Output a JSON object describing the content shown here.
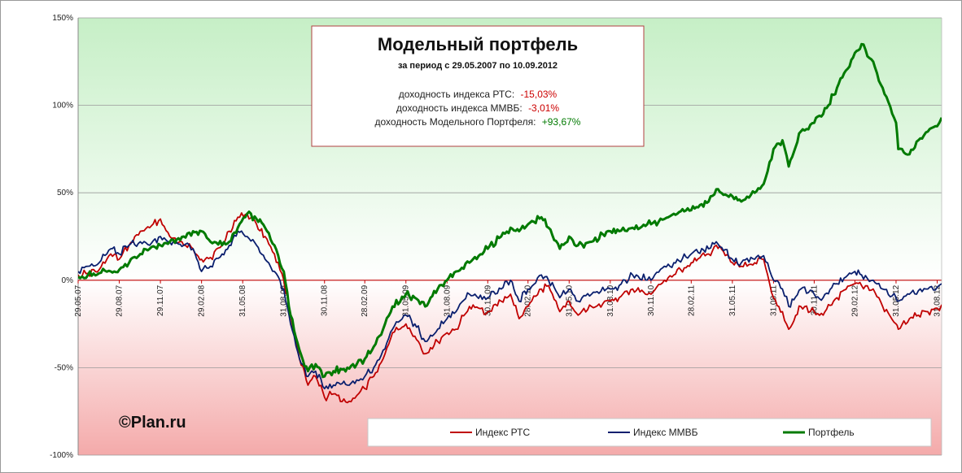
{
  "chart_data": {
    "type": "line",
    "title": "Модельный портфель",
    "subtitle": "за период с 29.05.2007 по 10.09.2012",
    "stats": [
      {
        "label": "доходность  индекса РТС:",
        "value": "-15,03%",
        "color": "#cc0000"
      },
      {
        "label": "доходность индекса ММВБ:",
        "value": "-3,01%",
        "color": "#cc0000"
      },
      {
        "label": "доходность Модельного Портфеля:",
        "value": "+93,67%",
        "color": "#007a00"
      }
    ],
    "watermark": "©Plan.ru",
    "ylim": [
      -100,
      150
    ],
    "yticks": [
      150,
      100,
      50,
      0,
      -50,
      -100
    ],
    "ytick_labels": [
      "150%",
      "100%",
      "50%",
      "0%",
      "-50%",
      "-100%"
    ],
    "xlim": [
      "2007-05-29",
      "2012-09-10"
    ],
    "xticks": [
      {
        "date": "2007-05-29",
        "label": "29.05.07"
      },
      {
        "date": "2007-08-29",
        "label": "29.08.07"
      },
      {
        "date": "2007-11-29",
        "label": "29.11.07"
      },
      {
        "date": "2008-02-29",
        "label": "29.02.08"
      },
      {
        "date": "2008-05-31",
        "label": "31.05.08"
      },
      {
        "date": "2008-08-31",
        "label": "31.08.08"
      },
      {
        "date": "2008-11-30",
        "label": "30.11.08"
      },
      {
        "date": "2009-02-28",
        "label": "28.02.09"
      },
      {
        "date": "2009-05-31",
        "label": "31.05.09"
      },
      {
        "date": "2009-08-31",
        "label": "31.08.09"
      },
      {
        "date": "2009-11-30",
        "label": "30.11.09"
      },
      {
        "date": "2010-02-28",
        "label": "28.02.10"
      },
      {
        "date": "2010-05-31",
        "label": "31.05.10"
      },
      {
        "date": "2010-08-31",
        "label": "31.08.10"
      },
      {
        "date": "2010-11-30",
        "label": "30.11.10"
      },
      {
        "date": "2011-02-28",
        "label": "28.02.11"
      },
      {
        "date": "2011-05-31",
        "label": "31.05.11"
      },
      {
        "date": "2011-08-31",
        "label": "31.08.11"
      },
      {
        "date": "2011-11-30",
        "label": "30.11.11"
      },
      {
        "date": "2012-02-29",
        "label": "29.02.12"
      },
      {
        "date": "2012-05-31",
        "label": "31.05.12"
      },
      {
        "date": "2012-08-31",
        "label": "31.08.12"
      }
    ],
    "grid": true,
    "legend": "bottom-right",
    "series": [
      {
        "name": "Индекс РТС",
        "color": "#c00000",
        "dates": [
          "2007-05-29",
          "2007-06-20",
          "2007-07-15",
          "2007-08-10",
          "2007-08-29",
          "2007-09-20",
          "2007-10-15",
          "2007-11-05",
          "2007-11-29",
          "2007-12-20",
          "2008-01-20",
          "2008-02-10",
          "2008-02-29",
          "2008-03-20",
          "2008-04-15",
          "2008-05-01",
          "2008-05-20",
          "2008-06-10",
          "2008-07-01",
          "2008-07-20",
          "2008-08-10",
          "2008-08-31",
          "2008-09-15",
          "2008-10-05",
          "2008-10-24",
          "2008-11-10",
          "2008-11-30",
          "2008-12-20",
          "2009-01-20",
          "2009-02-10",
          "2009-02-28",
          "2009-03-20",
          "2009-04-10",
          "2009-05-01",
          "2009-05-31",
          "2009-06-20",
          "2009-07-13",
          "2009-08-10",
          "2009-08-31",
          "2009-09-20",
          "2009-10-20",
          "2009-11-30",
          "2009-12-30",
          "2010-01-20",
          "2010-02-08",
          "2010-02-28",
          "2010-03-30",
          "2010-04-15",
          "2010-05-10",
          "2010-05-31",
          "2010-06-20",
          "2010-07-20",
          "2010-08-31",
          "2010-09-20",
          "2010-10-20",
          "2010-11-30",
          "2010-12-30",
          "2011-01-20",
          "2011-02-28",
          "2011-04-08",
          "2011-04-25",
          "2011-05-31",
          "2011-06-20",
          "2011-07-20",
          "2011-08-09",
          "2011-08-31",
          "2011-09-20",
          "2011-10-04",
          "2011-10-31",
          "2011-11-30",
          "2011-12-20",
          "2012-01-20",
          "2012-02-29",
          "2012-03-15",
          "2012-04-10",
          "2012-05-01",
          "2012-05-31",
          "2012-06-05",
          "2012-06-30",
          "2012-07-20",
          "2012-08-10",
          "2012-08-31",
          "2012-09-10"
        ],
        "values": [
          3,
          4,
          6,
          15,
          12,
          20,
          28,
          30,
          35,
          25,
          20,
          18,
          12,
          13,
          20,
          28,
          36,
          38,
          32,
          25,
          15,
          0,
          -20,
          -45,
          -60,
          -55,
          -67,
          -65,
          -70,
          -66,
          -62,
          -55,
          -45,
          -30,
          -25,
          -32,
          -42,
          -35,
          -30,
          -28,
          -15,
          -18,
          -12,
          -8,
          -22,
          -15,
          -5,
          -3,
          -18,
          -12,
          -20,
          -15,
          -12,
          -10,
          -5,
          -8,
          0,
          3,
          10,
          15,
          20,
          10,
          8,
          10,
          12,
          -10,
          -18,
          -28,
          -15,
          -18,
          -20,
          -10,
          -2,
          -3,
          -5,
          -15,
          -25,
          -28,
          -22,
          -20,
          -18,
          -16,
          -14
        ]
      },
      {
        "name": "Индекс ММВБ",
        "color": "#0a1f6e",
        "dates": [
          "2007-05-29",
          "2007-06-20",
          "2007-07-15",
          "2007-08-10",
          "2007-08-29",
          "2007-09-20",
          "2007-10-15",
          "2007-11-05",
          "2007-11-29",
          "2007-12-20",
          "2008-01-20",
          "2008-02-10",
          "2008-02-29",
          "2008-03-20",
          "2008-04-15",
          "2008-05-01",
          "2008-05-20",
          "2008-06-10",
          "2008-07-01",
          "2008-07-20",
          "2008-08-10",
          "2008-08-31",
          "2008-09-15",
          "2008-10-05",
          "2008-10-24",
          "2008-11-10",
          "2008-11-30",
          "2008-12-20",
          "2009-01-20",
          "2009-02-10",
          "2009-02-28",
          "2009-03-20",
          "2009-04-10",
          "2009-05-01",
          "2009-05-31",
          "2009-06-20",
          "2009-07-13",
          "2009-08-10",
          "2009-08-31",
          "2009-09-20",
          "2009-10-20",
          "2009-11-30",
          "2009-12-30",
          "2010-01-20",
          "2010-02-08",
          "2010-02-28",
          "2010-03-30",
          "2010-04-15",
          "2010-05-10",
          "2010-05-31",
          "2010-06-20",
          "2010-07-20",
          "2010-08-31",
          "2010-09-20",
          "2010-10-20",
          "2010-11-30",
          "2010-12-30",
          "2011-01-20",
          "2011-02-28",
          "2011-04-08",
          "2011-04-25",
          "2011-05-31",
          "2011-06-20",
          "2011-07-20",
          "2011-08-09",
          "2011-08-31",
          "2011-09-20",
          "2011-10-04",
          "2011-10-31",
          "2011-11-30",
          "2011-12-20",
          "2012-01-20",
          "2012-02-29",
          "2012-03-15",
          "2012-04-10",
          "2012-05-01",
          "2012-05-31",
          "2012-06-05",
          "2012-06-30",
          "2012-07-20",
          "2012-08-10",
          "2012-08-31",
          "2012-09-10"
        ],
        "values": [
          5,
          8,
          10,
          18,
          15,
          20,
          22,
          20,
          25,
          22,
          20,
          18,
          5,
          8,
          15,
          20,
          28,
          25,
          20,
          12,
          5,
          -5,
          -25,
          -45,
          -55,
          -52,
          -62,
          -60,
          -60,
          -57,
          -55,
          -50,
          -40,
          -28,
          -20,
          -25,
          -35,
          -28,
          -22,
          -18,
          -8,
          -10,
          -5,
          0,
          -12,
          -5,
          3,
          0,
          -10,
          -5,
          -12,
          -8,
          -5,
          -3,
          3,
          0,
          8,
          10,
          15,
          18,
          22,
          12,
          10,
          12,
          14,
          0,
          -5,
          -15,
          -5,
          -8,
          -10,
          -2,
          5,
          3,
          0,
          -5,
          -10,
          -12,
          -8,
          -6,
          -5,
          -4,
          -2
        ]
      },
      {
        "name": "Портфель",
        "color": "#007a00",
        "dates": [
          "2007-05-29",
          "2007-06-20",
          "2007-07-15",
          "2007-08-10",
          "2007-08-29",
          "2007-09-20",
          "2007-10-15",
          "2007-11-05",
          "2007-11-29",
          "2007-12-20",
          "2008-01-20",
          "2008-02-10",
          "2008-02-29",
          "2008-03-20",
          "2008-04-15",
          "2008-05-01",
          "2008-05-20",
          "2008-06-10",
          "2008-07-01",
          "2008-07-20",
          "2008-08-10",
          "2008-08-31",
          "2008-09-15",
          "2008-10-05",
          "2008-10-24",
          "2008-11-10",
          "2008-11-30",
          "2008-12-20",
          "2009-01-20",
          "2009-02-10",
          "2009-02-28",
          "2009-03-20",
          "2009-04-10",
          "2009-05-01",
          "2009-05-31",
          "2009-06-20",
          "2009-07-13",
          "2009-08-10",
          "2009-08-31",
          "2009-09-20",
          "2009-10-20",
          "2009-11-30",
          "2009-12-30",
          "2010-01-20",
          "2010-02-08",
          "2010-02-28",
          "2010-03-30",
          "2010-04-15",
          "2010-05-10",
          "2010-05-31",
          "2010-06-20",
          "2010-07-20",
          "2010-08-31",
          "2010-09-20",
          "2010-10-20",
          "2010-11-30",
          "2010-12-30",
          "2011-01-20",
          "2011-02-28",
          "2011-04-08",
          "2011-04-25",
          "2011-05-31",
          "2011-06-20",
          "2011-07-20",
          "2011-08-09",
          "2011-08-31",
          "2011-09-20",
          "2011-10-04",
          "2011-10-31",
          "2011-11-30",
          "2011-12-20",
          "2012-01-20",
          "2012-02-29",
          "2012-03-15",
          "2012-04-10",
          "2012-05-01",
          "2012-05-31",
          "2012-06-05",
          "2012-06-30",
          "2012-07-20",
          "2012-08-10",
          "2012-08-31",
          "2012-09-10"
        ],
        "values": [
          2,
          3,
          4,
          5,
          6,
          10,
          15,
          18,
          20,
          22,
          25,
          28,
          28,
          22,
          20,
          22,
          30,
          38,
          35,
          30,
          20,
          5,
          -20,
          -40,
          -52,
          -48,
          -55,
          -52,
          -50,
          -48,
          -45,
          -38,
          -28,
          -15,
          -8,
          -10,
          -15,
          -5,
          0,
          5,
          10,
          18,
          25,
          30,
          28,
          32,
          36,
          30,
          18,
          25,
          20,
          22,
          28,
          28,
          30,
          32,
          35,
          38,
          40,
          45,
          52,
          48,
          45,
          50,
          55,
          75,
          80,
          65,
          85,
          90,
          95,
          110,
          130,
          135,
          125,
          110,
          90,
          75,
          72,
          80,
          85,
          88,
          93
        ]
      }
    ]
  }
}
